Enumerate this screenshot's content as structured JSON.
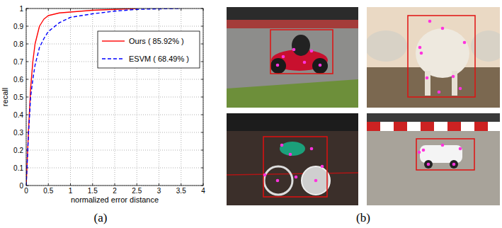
{
  "chart_data": {
    "type": "line",
    "x_label": "normalized error distance",
    "y_label": "recall",
    "x": [
      0,
      0.05,
      0.1,
      0.15,
      0.2,
      0.3,
      0.4,
      0.5,
      0.75,
      1,
      1.5,
      2,
      2.5,
      3,
      3.5
    ],
    "series": [
      {
        "name": "Ours ( 85.92% )",
        "color": "#ff0000",
        "line_style": "solid",
        "values": [
          0,
          0.3,
          0.55,
          0.7,
          0.8,
          0.9,
          0.94,
          0.96,
          0.975,
          0.98,
          0.99,
          0.995,
          1,
          null,
          null
        ]
      },
      {
        "name": "ESVM ( 68.49% )",
        "color": "#0000ff",
        "line_style": "dashed",
        "values": [
          0,
          0.28,
          0.5,
          0.6,
          0.68,
          0.78,
          0.83,
          0.87,
          0.92,
          0.95,
          0.97,
          0.985,
          0.995,
          0.998,
          1
        ]
      }
    ],
    "xlim": [
      0,
      4
    ],
    "ylim": [
      0,
      1
    ],
    "xticks": [
      0,
      0.5,
      1,
      1.5,
      2,
      2.5,
      3,
      3.5,
      4
    ],
    "yticks": [
      0,
      0.1,
      0.2,
      0.3,
      0.4,
      0.5,
      0.6,
      0.7,
      0.8,
      0.9,
      1
    ],
    "grid": true,
    "legend": "upper right"
  },
  "figure": {
    "panel_labels": [
      "(a)",
      "(b)"
    ]
  }
}
